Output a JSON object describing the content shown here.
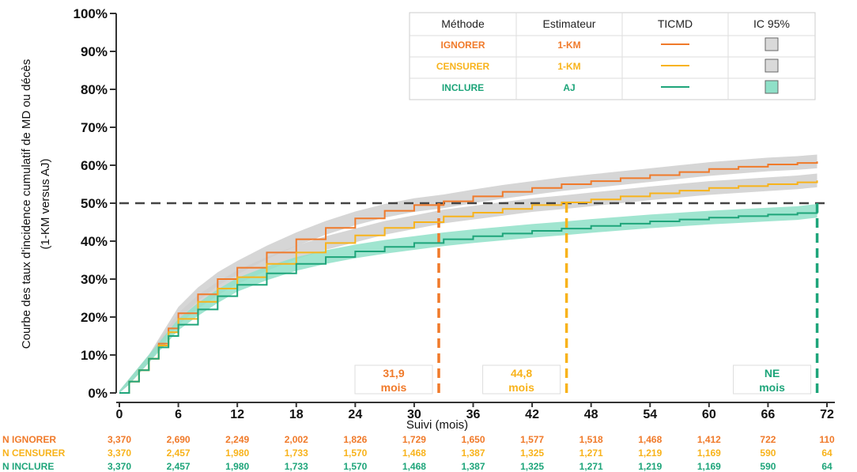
{
  "chart_data": {
    "type": "line",
    "xlabel": "Suivi (mois)",
    "ylabel_line1": "Courbe des taux d'incidence cumulatif de MD ou décès",
    "ylabel_line2": "(1-KM versus AJ)",
    "x_ticks": [
      0,
      6,
      12,
      18,
      24,
      30,
      36,
      42,
      48,
      54,
      60,
      66,
      72
    ],
    "y_ticks": [
      "0%",
      "10%",
      "20%",
      "30%",
      "40%",
      "50%",
      "60%",
      "70%",
      "80%",
      "90%",
      "100%"
    ],
    "xlim": [
      0,
      72
    ],
    "ylim": [
      0,
      100
    ],
    "reference_line_y": 50,
    "colors": {
      "ignorer": "#f07a2a",
      "censurer": "#f8b31b",
      "inclure": "#1ea57a",
      "ci_gray": "#cfcfcf",
      "ci_green": "#8fe0c8"
    },
    "series": [
      {
        "key": "ignorer",
        "name": "IGNORER",
        "estimator": "1-KM",
        "x": [
          0,
          1,
          2,
          3,
          4,
          5,
          6,
          8,
          10,
          12,
          15,
          18,
          21,
          24,
          27,
          30,
          33,
          36,
          39,
          42,
          45,
          48,
          51,
          54,
          57,
          60,
          63,
          66,
          69,
          71
        ],
        "y": [
          0,
          3,
          6,
          9,
          13,
          17,
          21,
          26,
          30,
          33,
          37,
          40.5,
          43.5,
          46,
          48,
          49.5,
          50.5,
          51.8,
          53,
          54,
          55,
          55.8,
          56.6,
          57.4,
          58.2,
          59,
          59.6,
          60.2,
          60.6,
          61
        ]
      },
      {
        "key": "censurer",
        "name": "CENSURER",
        "estimator": "1-KM",
        "x": [
          0,
          1,
          2,
          3,
          4,
          5,
          6,
          8,
          10,
          12,
          15,
          18,
          21,
          24,
          27,
          30,
          33,
          36,
          39,
          42,
          45,
          48,
          51,
          54,
          57,
          60,
          63,
          66,
          69,
          71
        ],
        "y": [
          0,
          3,
          6,
          9,
          12.5,
          16,
          19.5,
          24,
          27.5,
          30.5,
          34,
          37,
          39.5,
          41.5,
          43.5,
          45,
          46.5,
          47.5,
          48.5,
          49.5,
          50.2,
          51,
          51.8,
          52.6,
          53.3,
          54,
          54.5,
          55,
          55.5,
          56
        ]
      },
      {
        "key": "inclure",
        "name": "INCLURE",
        "estimator": "AJ",
        "x": [
          0,
          1,
          2,
          3,
          4,
          5,
          6,
          8,
          10,
          12,
          15,
          18,
          21,
          24,
          27,
          30,
          33,
          36,
          39,
          42,
          45,
          48,
          51,
          54,
          57,
          60,
          63,
          66,
          69,
          71
        ],
        "y": [
          0,
          3,
          6,
          9,
          12,
          15,
          18,
          22,
          25.5,
          28.5,
          31.5,
          34,
          35.8,
          37.3,
          38.5,
          39.5,
          40.5,
          41.3,
          42,
          42.7,
          43.3,
          44,
          44.6,
          45.2,
          45.7,
          46.2,
          46.6,
          47,
          47.4,
          48
        ]
      }
    ],
    "medians": [
      {
        "key": "ignorer",
        "x": 32.5,
        "value": "31,9",
        "unit": "mois"
      },
      {
        "key": "censurer",
        "x": 45.5,
        "value": "44,8",
        "unit": "mois"
      },
      {
        "key": "inclure",
        "x": 71,
        "value": "NE",
        "unit": "mois"
      }
    ],
    "legend": {
      "headers": [
        "Méthode",
        "Estimateur",
        "TICMD",
        "IC 95%"
      ],
      "rows": [
        {
          "key": "ignorer",
          "method": "IGNORER",
          "estimator": "1-KM"
        },
        {
          "key": "censurer",
          "method": "CENSURER",
          "estimator": "1-KM"
        },
        {
          "key": "inclure",
          "method": "INCLURE",
          "estimator": "AJ"
        }
      ]
    },
    "risk_table": {
      "x": [
        0,
        6,
        12,
        18,
        24,
        30,
        36,
        42,
        48,
        54,
        60,
        66,
        72
      ],
      "rows": [
        {
          "key": "ignorer",
          "label": "N IGNORER",
          "values": [
            "3,370",
            "2,690",
            "2,249",
            "2,002",
            "1,826",
            "1,729",
            "1,650",
            "1,577",
            "1,518",
            "1,468",
            "1,412",
            "722",
            "110"
          ]
        },
        {
          "key": "censurer",
          "label": "N CENSURER",
          "values": [
            "3,370",
            "2,457",
            "1,980",
            "1,733",
            "1,570",
            "1,468",
            "1,387",
            "1,325",
            "1,271",
            "1,219",
            "1,169",
            "590",
            "64"
          ]
        },
        {
          "key": "inclure",
          "label": "N INCLURE",
          "values": [
            "3,370",
            "2,457",
            "1,980",
            "1,733",
            "1,570",
            "1,468",
            "1,387",
            "1,325",
            "1,271",
            "1,219",
            "1,169",
            "590",
            "64"
          ]
        }
      ]
    }
  }
}
